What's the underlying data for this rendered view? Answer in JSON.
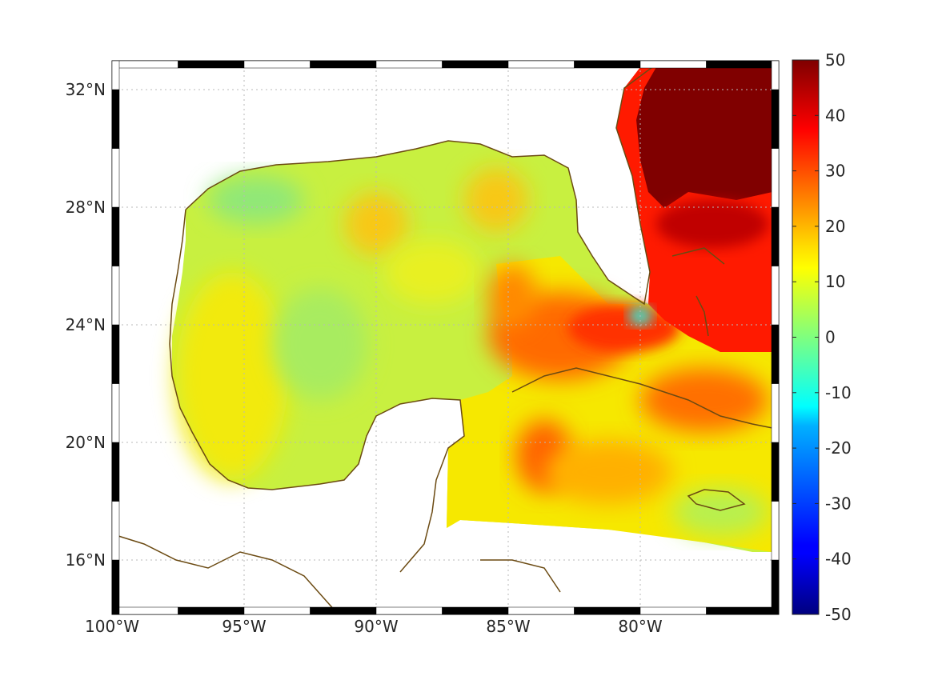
{
  "map": {
    "lon_range": [
      -100,
      -75
    ],
    "lat_range": [
      14.3,
      33
    ],
    "lon_ticks": [
      {
        "value": -100,
        "label": "100°W"
      },
      {
        "value": -95,
        "label": "95°W"
      },
      {
        "value": -90,
        "label": "90°W"
      },
      {
        "value": -85,
        "label": "85°W"
      },
      {
        "value": -80,
        "label": "80°W"
      }
    ],
    "lat_ticks": [
      {
        "value": 32,
        "label": "32°N"
      },
      {
        "value": 28,
        "label": "28°N"
      },
      {
        "value": 24,
        "label": "24°N"
      },
      {
        "value": 20,
        "label": "20°N"
      },
      {
        "value": 16,
        "label": "16°N"
      }
    ],
    "grid": true,
    "coastline_color": "#6b4a12",
    "frame_style": "black-white dashed border"
  },
  "colorbar": {
    "min": -50,
    "max": 50,
    "colormap": "jet",
    "ticks": [
      {
        "value": 50,
        "label": "50"
      },
      {
        "value": 40,
        "label": "40"
      },
      {
        "value": 30,
        "label": "30"
      },
      {
        "value": 20,
        "label": "20"
      },
      {
        "value": 10,
        "label": "10"
      },
      {
        "value": 0,
        "label": "0"
      },
      {
        "value": -10,
        "label": "-10"
      },
      {
        "value": -20,
        "label": "-20"
      },
      {
        "value": -30,
        "label": "-30"
      },
      {
        "value": -40,
        "label": "-40"
      },
      {
        "value": -50,
        "label": "-50"
      }
    ]
  },
  "field": {
    "description_values": {
      "gulf_interior": 9,
      "gulf_warm_patches": 16,
      "florida_straits": 30,
      "atlantic_east_of_florida": 50,
      "caribbean": 14
    }
  }
}
